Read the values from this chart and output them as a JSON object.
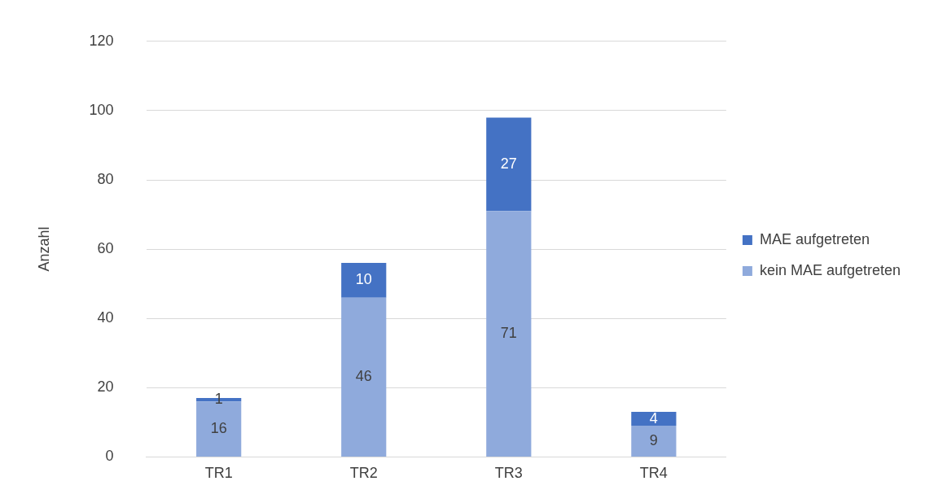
{
  "chart_data": {
    "type": "bar",
    "stacked": true,
    "ylabel": "Anzahl",
    "categories": [
      "TR1",
      "TR2",
      "TR3",
      "TR4"
    ],
    "series": [
      {
        "name": "kein MAE aufgetreten",
        "color": "#8faadc",
        "values": [
          16,
          46,
          71,
          9
        ]
      },
      {
        "name": "MAE aufgetreten",
        "color": "#4472c4",
        "values": [
          1,
          10,
          27,
          4
        ]
      }
    ],
    "ylim": [
      0,
      120
    ],
    "yticks": [
      0,
      20,
      40,
      60,
      80,
      100,
      120
    ],
    "grid": "y",
    "legend": "right",
    "data_labels": true
  }
}
